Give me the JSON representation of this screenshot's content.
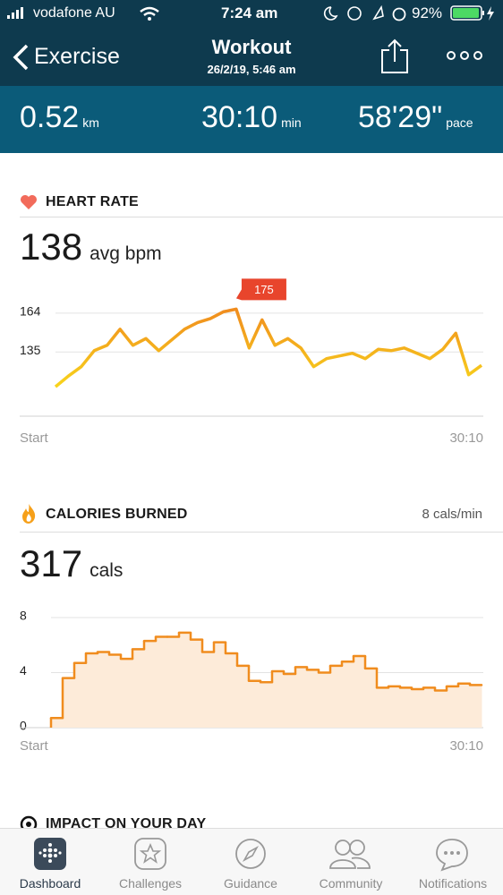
{
  "status_bar": {
    "carrier": "vodafone AU",
    "time": "7:24 am",
    "battery": "92%"
  },
  "nav": {
    "back": "Exercise",
    "title": "Workout",
    "subtitle": "26/2/19, 5:46 am"
  },
  "stats": [
    {
      "value": "0.52",
      "unit": "km"
    },
    {
      "value": "30:10",
      "unit": "min"
    },
    {
      "value": "58'29\"",
      "unit": "pace"
    }
  ],
  "heart_rate": {
    "title": "HEART RATE",
    "value": "138",
    "unit": "avg bpm",
    "chart_data": {
      "type": "line",
      "values": [
        109,
        117,
        124,
        136,
        140,
        152,
        140,
        145,
        136,
        144,
        152,
        157,
        160,
        165,
        167,
        138,
        159,
        140,
        145,
        138,
        124,
        130,
        132,
        134,
        130,
        137,
        136,
        138,
        134,
        130,
        137,
        149,
        118,
        125
      ],
      "color": "#f08c1e",
      "ylim": [
        87,
        184
      ],
      "yticks": [
        135,
        164
      ],
      "x_labels": [
        "Start",
        "30:10"
      ],
      "annotation": "175",
      "grid": true
    }
  },
  "calories": {
    "title": "CALORIES BURNED",
    "rate": "8 cals/min",
    "value": "317",
    "unit": "cals",
    "chart_data": {
      "type": "step-area",
      "values": [
        0.7,
        3.6,
        4.7,
        5.4,
        5.5,
        5.3,
        5.0,
        5.7,
        6.3,
        6.6,
        6.6,
        6.9,
        6.4,
        5.5,
        6.2,
        5.4,
        4.5,
        3.4,
        3.3,
        4.1,
        3.9,
        4.4,
        4.2,
        4.0,
        4.5,
        4.8,
        5.2,
        4.3,
        2.9,
        3.0,
        2.9,
        2.8,
        2.9,
        2.7,
        3.0,
        3.2,
        3.1
      ],
      "color": "#f08c1e",
      "fill": "#fdebd9",
      "ylim": [
        0,
        8
      ],
      "yticks": [
        0,
        4,
        8
      ],
      "x_labels": [
        "Start",
        "30:10"
      ],
      "grid": true
    }
  },
  "impact": {
    "title": "IMPACT ON YOUR DAY"
  },
  "tabs": [
    "Dashboard",
    "Challenges",
    "Guidance",
    "Community",
    "Notifications"
  ]
}
